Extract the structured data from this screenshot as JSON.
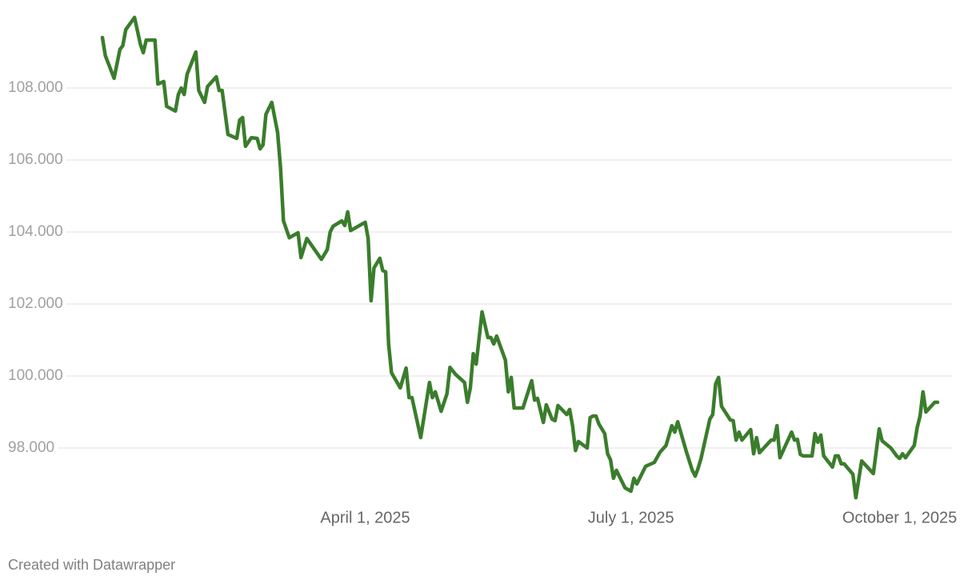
{
  "chart_data": {
    "type": "line",
    "x": [
      "2025-01-01",
      "2025-01-02",
      "2025-01-05",
      "2025-01-07",
      "2025-01-08",
      "2025-01-09",
      "2025-01-12",
      "2025-01-14",
      "2025-01-15",
      "2025-01-16",
      "2025-01-19",
      "2025-01-20",
      "2025-01-22",
      "2025-01-23",
      "2025-01-26",
      "2025-01-27",
      "2025-01-28",
      "2025-01-29",
      "2025-01-30",
      "2025-02-02",
      "2025-02-03",
      "2025-02-05",
      "2025-02-06",
      "2025-02-09",
      "2025-02-10",
      "2025-02-11",
      "2025-02-13",
      "2025-02-16",
      "2025-02-17",
      "2025-02-18",
      "2025-02-19",
      "2025-02-21",
      "2025-02-23",
      "2025-02-24",
      "2025-02-25",
      "2025-02-26",
      "2025-02-28",
      "2025-03-02",
      "2025-03-03",
      "2025-03-04",
      "2025-03-06",
      "2025-03-09",
      "2025-03-10",
      "2025-03-12",
      "2025-03-17",
      "2025-03-19",
      "2025-03-20",
      "2025-03-21",
      "2025-03-24",
      "2025-03-25",
      "2025-03-26",
      "2025-03-27",
      "2025-04-01",
      "2025-04-02",
      "2025-04-03",
      "2025-04-04",
      "2025-04-06",
      "2025-04-07",
      "2025-04-08",
      "2025-04-09",
      "2025-04-10",
      "2025-04-13",
      "2025-04-15",
      "2025-04-16",
      "2025-04-17",
      "2025-04-20",
      "2025-04-23",
      "2025-04-24",
      "2025-04-25",
      "2025-04-27",
      "2025-04-29",
      "2025-04-30",
      "2025-05-02",
      "2025-05-05",
      "2025-05-06",
      "2025-05-07",
      "2025-05-08",
      "2025-05-09",
      "2025-05-11",
      "2025-05-13",
      "2025-05-14",
      "2025-05-15",
      "2025-05-16",
      "2025-05-19",
      "2025-05-20",
      "2025-05-21",
      "2025-05-22",
      "2025-05-25",
      "2025-05-28",
      "2025-05-29",
      "2025-05-30",
      "2025-06-01",
      "2025-06-02",
      "2025-06-04",
      "2025-06-05",
      "2025-06-06",
      "2025-06-09",
      "2025-06-10",
      "2025-06-11",
      "2025-06-12",
      "2025-06-13",
      "2025-06-16",
      "2025-06-17",
      "2025-06-18",
      "2025-06-19",
      "2025-06-20",
      "2025-06-22",
      "2025-06-23",
      "2025-06-24",
      "2025-06-25",
      "2025-06-26",
      "2025-06-29",
      "2025-07-01",
      "2025-07-02",
      "2025-07-03",
      "2025-07-06",
      "2025-07-09",
      "2025-07-11",
      "2025-07-13",
      "2025-07-15",
      "2025-07-16",
      "2025-07-17",
      "2025-07-20",
      "2025-07-22",
      "2025-07-23",
      "2025-07-24",
      "2025-07-25",
      "2025-07-28",
      "2025-07-29",
      "2025-07-30",
      "2025-07-31",
      "2025-08-01",
      "2025-08-04",
      "2025-08-05",
      "2025-08-06",
      "2025-08-07",
      "2025-08-08",
      "2025-08-11",
      "2025-08-12",
      "2025-08-13",
      "2025-08-14",
      "2025-08-18",
      "2025-08-19",
      "2025-08-20",
      "2025-08-21",
      "2025-08-25",
      "2025-08-26",
      "2025-08-27",
      "2025-08-28",
      "2025-08-29",
      "2025-09-01",
      "2025-09-02",
      "2025-09-03",
      "2025-09-04",
      "2025-09-05",
      "2025-09-08",
      "2025-09-09",
      "2025-09-10",
      "2025-09-11",
      "2025-09-12",
      "2025-09-15",
      "2025-09-16",
      "2025-09-18",
      "2025-09-22",
      "2025-09-24",
      "2025-09-25",
      "2025-09-28",
      "2025-09-30",
      "2025-10-01",
      "2025-10-02",
      "2025-10-03",
      "2025-10-06",
      "2025-10-07",
      "2025-10-08",
      "2025-10-09",
      "2025-10-10",
      "2025-10-13",
      "2025-10-14"
    ],
    "series": [
      {
        "color": "#3a7d2c",
        "values": [
          109.4,
          108.9,
          108.27,
          109.07,
          109.18,
          109.62,
          109.96,
          109.22,
          108.98,
          109.33,
          109.33,
          108.11,
          108.18,
          107.49,
          107.36,
          107.82,
          108.0,
          107.82,
          108.38,
          109.0,
          107.93,
          107.6,
          108.04,
          108.31,
          107.93,
          107.93,
          106.71,
          106.6,
          107.11,
          107.18,
          106.38,
          106.62,
          106.6,
          106.31,
          106.42,
          107.27,
          107.6,
          106.76,
          105.78,
          104.31,
          103.84,
          103.98,
          103.29,
          103.82,
          103.24,
          103.51,
          104.0,
          104.16,
          104.31,
          104.18,
          104.56,
          104.04,
          104.27,
          103.82,
          102.09,
          103.0,
          103.27,
          102.93,
          102.89,
          100.89,
          100.09,
          99.67,
          100.22,
          99.4,
          99.4,
          98.29,
          99.82,
          99.4,
          99.56,
          99.02,
          99.51,
          100.24,
          100.04,
          99.82,
          99.27,
          99.67,
          100.62,
          100.33,
          101.78,
          101.07,
          101.07,
          100.89,
          101.11,
          100.44,
          99.56,
          99.96,
          99.11,
          99.11,
          99.87,
          99.33,
          99.38,
          98.71,
          99.2,
          98.8,
          98.76,
          99.18,
          98.93,
          99.07,
          98.62,
          97.93,
          98.18,
          98.0,
          98.84,
          98.89,
          98.89,
          98.67,
          98.4,
          97.84,
          97.67,
          97.16,
          97.38,
          96.89,
          96.8,
          97.16,
          97.0,
          97.49,
          97.6,
          97.89,
          98.07,
          98.62,
          98.44,
          98.73,
          97.89,
          97.38,
          97.22,
          97.44,
          97.71,
          98.8,
          98.93,
          99.78,
          99.96,
          99.16,
          98.78,
          98.76,
          98.22,
          98.44,
          98.22,
          98.51,
          97.84,
          98.29,
          97.87,
          98.22,
          98.22,
          98.62,
          97.73,
          98.44,
          98.22,
          98.24,
          97.82,
          97.78,
          97.78,
          98.4,
          98.16,
          98.36,
          97.78,
          97.47,
          97.78,
          97.78,
          97.56,
          97.56,
          97.27,
          96.62,
          97.64,
          97.29,
          98.53,
          98.2,
          98.0,
          97.78,
          97.71,
          97.84,
          97.73,
          98.07,
          98.56,
          98.89,
          99.56,
          99.0,
          99.27,
          99.27
        ]
      }
    ],
    "xlim": [
      "2025-01-01",
      "2025-10-14"
    ],
    "xticks": [
      {
        "value": "2025-04-01",
        "label": "April 1, 2025"
      },
      {
        "value": "2025-07-01",
        "label": "July 1, 2025"
      },
      {
        "value": "2025-10-01",
        "label": "October 1, 2025"
      }
    ],
    "ylim": [
      96.6,
      110.1
    ],
    "yticks": [
      {
        "value": 98,
        "label": "98.000"
      },
      {
        "value": 100,
        "label": "100.000"
      },
      {
        "value": 102,
        "label": "102.000"
      },
      {
        "value": 104,
        "label": "104.000"
      },
      {
        "value": 106,
        "label": "106.000"
      },
      {
        "value": 108,
        "label": "108.000"
      }
    ],
    "grid": true,
    "footer": "Created with Datawrapper"
  }
}
